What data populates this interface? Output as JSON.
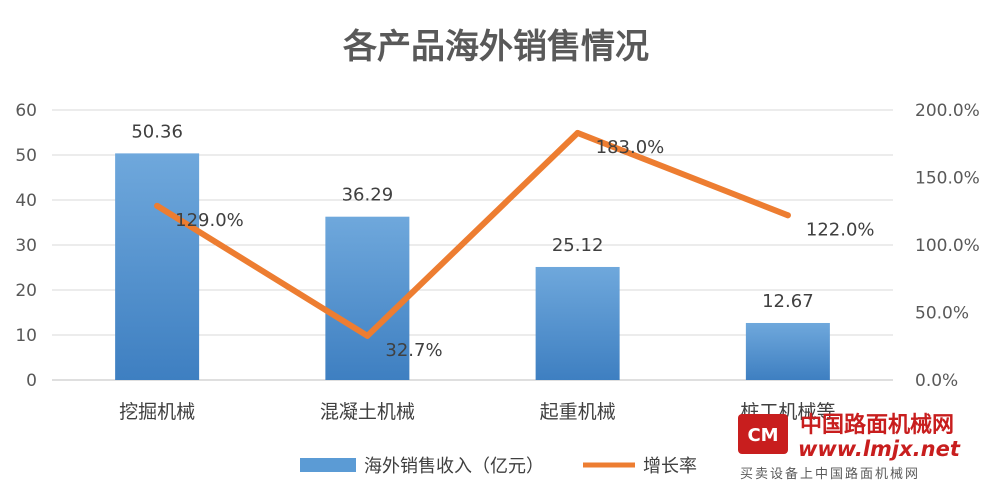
{
  "chart_data": {
    "type": "bar",
    "title": "各产品海外销售情况",
    "categories": [
      "挖掘机械",
      "混凝土机械",
      "起重机械",
      "桩工机械等"
    ],
    "series": [
      {
        "name": "海外销售收入（亿元）",
        "type": "bar",
        "axis": "left",
        "values": [
          50.36,
          36.29,
          25.12,
          12.67
        ],
        "labels": [
          "50.36",
          "36.29",
          "25.12",
          "12.67"
        ],
        "color": "#5b9bd5"
      },
      {
        "name": "增长率",
        "type": "line",
        "axis": "right",
        "values": [
          129.0,
          32.7,
          183.0,
          122.0
        ],
        "labels": [
          "129.0%",
          "32.7%",
          "183.0%",
          "122.0%"
        ],
        "color": "#ed7d31"
      }
    ],
    "y_left": {
      "min": 0,
      "max": 60,
      "ticks": [
        "0",
        "10",
        "20",
        "30",
        "40",
        "50",
        "60"
      ]
    },
    "y_right": {
      "min": 0,
      "max": 200,
      "ticks": [
        "0.0%",
        "50.0%",
        "100.0%",
        "150.0%",
        "200.0%"
      ]
    },
    "grid": true,
    "legend_position": "bottom"
  },
  "watermark": {
    "name": "中国路面机械网",
    "url": "www.lmjx.net",
    "tagline": "买卖设备上中国路面机械网",
    "logo_text": "CM"
  }
}
